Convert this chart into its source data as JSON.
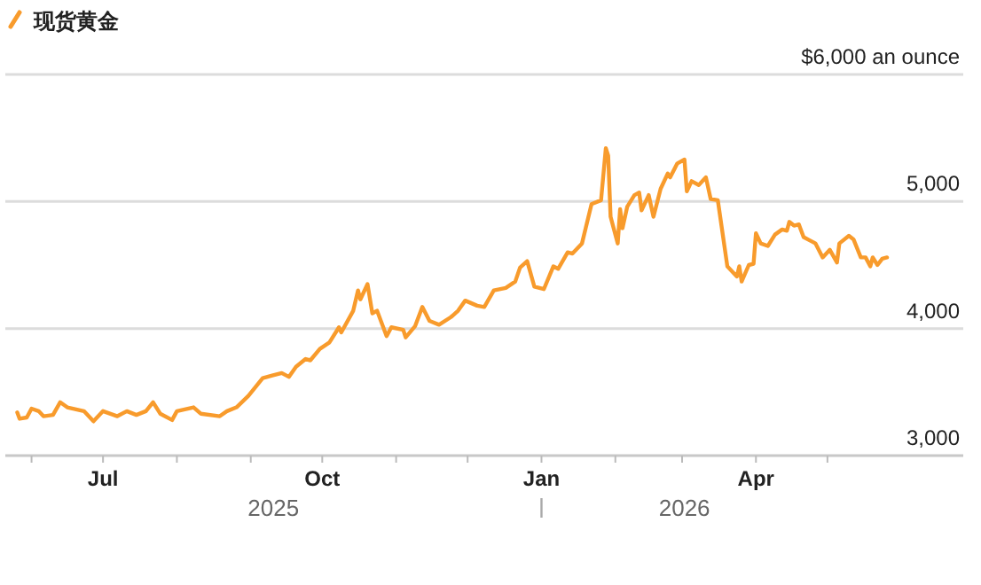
{
  "chart_data": {
    "type": "line",
    "xlim": [
      "2025-05-21",
      "2026-06-27"
    ],
    "ylim": [
      3000,
      6000
    ],
    "xticks": [
      {
        "value": "2025-06-01",
        "label": null
      },
      {
        "value": "2025-07-01",
        "label": "Jul"
      },
      {
        "value": "2025-08-01",
        "label": null
      },
      {
        "value": "2025-09-01",
        "label": null
      },
      {
        "value": "2025-10-01",
        "label": "Oct"
      },
      {
        "value": "2025-11-01",
        "label": null
      },
      {
        "value": "2025-12-01",
        "label": null
      },
      {
        "value": "2026-01-01",
        "label": "Jan"
      },
      {
        "value": "2026-02-01",
        "label": null
      },
      {
        "value": "2026-03-01",
        "label": null
      },
      {
        "value": "2026-04-01",
        "label": "Apr"
      },
      {
        "value": "2026-05-01",
        "label": null
      }
    ],
    "yticks": [
      {
        "value": 3000,
        "label": "3,000"
      },
      {
        "value": 4000,
        "label": "4,000"
      },
      {
        "value": 5000,
        "label": "5,000"
      },
      {
        "value": 6000,
        "label": "$6,000 an ounce"
      }
    ],
    "grid": "y",
    "legend": "top left",
    "line_style": "solid",
    "annotations": [
      "2025",
      "2026"
    ],
    "series": [
      {
        "name": "现货黄金",
        "color": "#f89b2c",
        "x": [
          "2025-05-26",
          "2025-05-27",
          "2025-05-30",
          "2025-06-01",
          "2025-06-04",
          "2025-06-06",
          "2025-06-10",
          "2025-06-13",
          "2025-06-16",
          "2025-06-23",
          "2025-06-27",
          "2025-07-01",
          "2025-07-07",
          "2025-07-11",
          "2025-07-15",
          "2025-07-19",
          "2025-07-22",
          "2025-07-25",
          "2025-07-30",
          "2025-08-01",
          "2025-08-08",
          "2025-08-11",
          "2025-08-19",
          "2025-08-22",
          "2025-08-26",
          "2025-08-31",
          "2025-09-03",
          "2025-09-06",
          "2025-09-10",
          "2025-09-14",
          "2025-09-17",
          "2025-09-20",
          "2025-09-24",
          "2025-09-26",
          "2025-09-30",
          "2025-10-04",
          "2025-10-08",
          "2025-10-09",
          "2025-10-14",
          "2025-10-16",
          "2025-10-17",
          "2025-10-20",
          "2025-10-22",
          "2025-10-24",
          "2025-10-28",
          "2025-10-30",
          "2025-11-04",
          "2025-11-05",
          "2025-11-09",
          "2025-11-12",
          "2025-11-15",
          "2025-11-19",
          "2025-11-24",
          "2025-11-27",
          "2025-11-30",
          "2025-12-05",
          "2025-12-08",
          "2025-12-12",
          "2025-12-17",
          "2025-12-21",
          "2025-12-23",
          "2025-12-26",
          "2025-12-29",
          "2026-01-02",
          "2026-01-06",
          "2026-01-08",
          "2026-01-12",
          "2026-01-14",
          "2026-01-18",
          "2026-01-22",
          "2026-01-26",
          "2026-01-28",
          "2026-01-29",
          "2026-01-30",
          "2026-02-02",
          "2026-02-03",
          "2026-02-04",
          "2026-02-06",
          "2026-02-09",
          "2026-02-11",
          "2026-02-12",
          "2026-02-15",
          "2026-02-17",
          "2026-02-20",
          "2026-02-23",
          "2026-02-24",
          "2026-02-27",
          "2026-03-02",
          "2026-03-03",
          "2026-03-05",
          "2026-03-08",
          "2026-03-11",
          "2026-03-13",
          "2026-03-16",
          "2026-03-20",
          "2026-03-24",
          "2026-03-25",
          "2026-03-26",
          "2026-03-29",
          "2026-03-31",
          "2026-04-01",
          "2026-04-03",
          "2026-04-06",
          "2026-04-09",
          "2026-04-12",
          "2026-04-14",
          "2026-04-15",
          "2026-04-17",
          "2026-04-19",
          "2026-04-21",
          "2026-04-23",
          "2026-04-26",
          "2026-04-29",
          "2026-05-02",
          "2026-05-05",
          "2026-05-06",
          "2026-05-10",
          "2026-05-12",
          "2026-05-15",
          "2026-05-17",
          "2026-05-19",
          "2026-05-20",
          "2026-05-22",
          "2026-05-24",
          "2026-05-26"
        ],
        "values": [
          3340,
          3290,
          3300,
          3370,
          3350,
          3310,
          3320,
          3420,
          3380,
          3350,
          3270,
          3350,
          3310,
          3350,
          3320,
          3350,
          3420,
          3330,
          3280,
          3350,
          3380,
          3330,
          3310,
          3350,
          3380,
          3470,
          3540,
          3610,
          3630,
          3650,
          3620,
          3700,
          3760,
          3750,
          3840,
          3890,
          4010,
          3970,
          4140,
          4300,
          4230,
          4350,
          4120,
          4140,
          3940,
          4010,
          3990,
          3930,
          4020,
          4170,
          4060,
          4030,
          4090,
          4140,
          4220,
          4180,
          4170,
          4300,
          4320,
          4370,
          4480,
          4530,
          4330,
          4310,
          4490,
          4470,
          4600,
          4590,
          4670,
          4980,
          5010,
          5420,
          5360,
          4880,
          4670,
          4940,
          4790,
          4960,
          5050,
          5070,
          4930,
          5050,
          4880,
          5100,
          5220,
          5190,
          5300,
          5330,
          5080,
          5160,
          5130,
          5190,
          5020,
          5010,
          4490,
          4410,
          4490,
          4370,
          4500,
          4510,
          4750,
          4670,
          4650,
          4740,
          4780,
          4770,
          4840,
          4810,
          4820,
          4720,
          4700,
          4670,
          4560,
          4620,
          4520,
          4670,
          4730,
          4700,
          4560,
          4560,
          4490,
          4560,
          4500,
          4550,
          4560
        ]
      }
    ]
  }
}
